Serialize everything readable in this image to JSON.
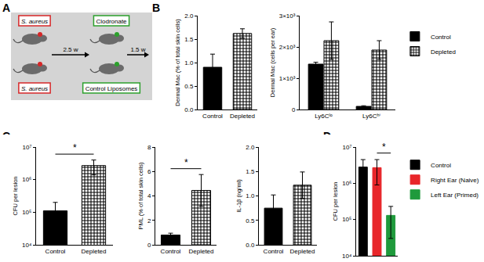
{
  "panel_labels": [
    "A",
    "B",
    "C",
    "D"
  ],
  "diagram": {
    "rows": [
      {
        "infection": "S. aureus",
        "treatment": "Clodronate"
      },
      {
        "infection": "S. aureus",
        "treatment": "Control Liposomes"
      }
    ],
    "intervals": [
      "2.5 w",
      "1.5 w"
    ]
  },
  "chart_data": [
    {
      "type": "bar",
      "y_label": "Dermal Mac (% of total skin cells)",
      "categories": [
        "Control",
        "Depleted"
      ],
      "series": [
        {
          "name": "Control",
          "color": "#000000",
          "values": [
            0.9,
            null
          ],
          "errors": [
            0.28,
            null
          ]
        },
        {
          "name": "Depleted",
          "color": "#000000",
          "marker": "checkered",
          "values": [
            null,
            1.62
          ],
          "errors": [
            null,
            0.1
          ]
        }
      ],
      "ylim": [
        0,
        2
      ],
      "yticks": [
        {
          "value": 0,
          "label": "0.0"
        },
        0.5,
        {
          "value": 1,
          "label": "1.0"
        },
        1.5,
        {
          "value": 2,
          "label": "2.0"
        }
      ],
      "grid": false
    },
    {
      "type": "bar",
      "y_label": "Dermal Mac (cells per ear)",
      "categories": [
        "Ly6Cˡᵒ",
        "Ly6Cʰⁱ"
      ],
      "series": [
        {
          "name": "Control",
          "color": "#000000",
          "values": [
            1450,
            100
          ],
          "errors": [
            60,
            20
          ]
        },
        {
          "name": "Depleted",
          "color": "#000000",
          "marker": "checkered",
          "values": [
            2200,
            1900
          ],
          "errors": [
            600,
            300
          ]
        }
      ],
      "ylim": [
        0,
        3000
      ],
      "yticks": [
        0,
        {
          "value": 1000,
          "label": "1×10³"
        },
        {
          "value": 2000,
          "label": "2×10³"
        },
        {
          "value": 3000,
          "label": "3×10³"
        }
      ],
      "legend": "right",
      "grid": false
    },
    {
      "type": "bar",
      "y_label": "CFU per lesion",
      "categories": [
        "Control",
        "Depleted"
      ],
      "series": [
        {
          "name": "Control",
          "color": "#000000",
          "values": [
            110000,
            null
          ],
          "errors": [
            90000,
            null
          ]
        },
        {
          "name": "Depleted",
          "color": "#000000",
          "marker": "checkered",
          "values": [
            null,
            2700000
          ],
          "errors": [
            null,
            1300000
          ]
        }
      ],
      "log": "y",
      "ylim": [
        10000,
        10000000
      ],
      "yticks": [
        {
          "value": 10000,
          "label": "10⁴"
        },
        {
          "value": 100000,
          "label": "10⁵"
        },
        {
          "value": 1000000,
          "label": "10⁶"
        },
        {
          "value": 10000000,
          "label": "10⁷"
        }
      ],
      "annotations": [
        {
          "text": "*",
          "between": [
            "Control",
            "Depleted"
          ]
        }
      ],
      "grid": false
    },
    {
      "type": "bar",
      "y_label": "PML (% of total skin cells)",
      "categories": [
        "Control",
        "Depleted"
      ],
      "series": [
        {
          "name": "Control",
          "color": "#000000",
          "values": [
            0.8,
            null
          ],
          "errors": [
            0.15,
            null
          ]
        },
        {
          "name": "Depleted",
          "color": "#000000",
          "marker": "checkered",
          "values": [
            null,
            4.45
          ],
          "errors": [
            null,
            1.3
          ]
        }
      ],
      "ylim": [
        0,
        8
      ],
      "yticks": [
        0,
        2,
        4,
        6,
        8
      ],
      "annotations": [
        {
          "text": "*",
          "between": [
            "Control",
            "Depleted"
          ]
        }
      ],
      "grid": false
    },
    {
      "type": "bar",
      "y_label": "IL-1β (ng/ml)",
      "categories": [
        "Control",
        "Depleted"
      ],
      "series": [
        {
          "name": "Control",
          "color": "#000000",
          "values": [
            0.75,
            null
          ],
          "errors": [
            0.27,
            null
          ]
        },
        {
          "name": "Depleted",
          "color": "#000000",
          "marker": "checkered",
          "values": [
            null,
            1.22
          ],
          "errors": [
            null,
            0.27
          ]
        }
      ],
      "ylim": [
        0,
        2
      ],
      "yticks": [
        {
          "value": 0,
          "label": "0.0"
        },
        0.5,
        {
          "value": 1,
          "label": "1.0"
        },
        1.5,
        {
          "value": 2,
          "label": "2.0"
        }
      ],
      "grid": false
    },
    {
      "type": "bar",
      "y_label": "CFU per lesion",
      "categories": [
        "Control",
        "Right Ear (Naive)",
        "Left Ear (Primed)"
      ],
      "values": [
        2800000,
        2700000,
        130000
      ],
      "errors": [
        1700000,
        1800000,
        100000
      ],
      "colors": [
        "#000000",
        "#e8262a",
        "#1f9a3c"
      ],
      "log": "y",
      "ylim": [
        10000,
        10000000
      ],
      "yticks": [
        {
          "value": 10000,
          "label": "10⁴"
        },
        {
          "value": 100000,
          "label": "10⁵"
        },
        {
          "value": 1000000,
          "label": "10⁶"
        },
        {
          "value": 10000000,
          "label": "10⁷"
        }
      ],
      "annotations": [
        {
          "text": "*",
          "between": [
            "Right Ear (Naive)",
            "Left Ear (Primed)"
          ]
        }
      ],
      "legend": "right",
      "tick_labels": "y",
      "grid": false
    }
  ]
}
